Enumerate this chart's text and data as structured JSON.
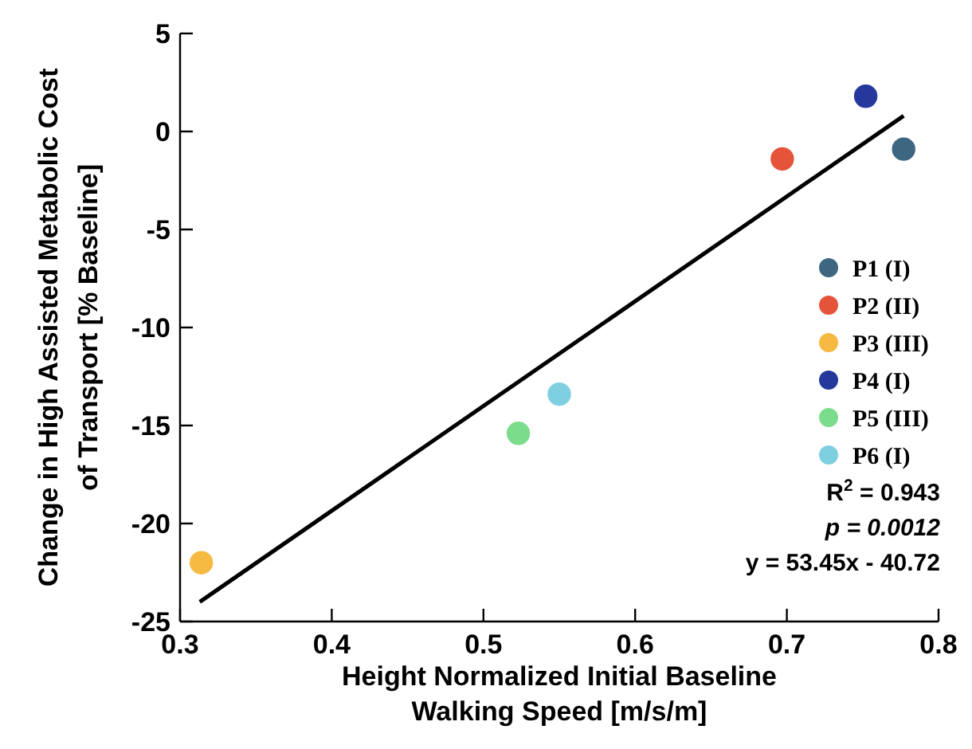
{
  "chart_data": {
    "type": "scatter",
    "xlabel": "Height Normalized Initial Baseline\nWalking Speed [m/s/m]",
    "ylabel": "Change in High Assisted Metabolic Cost\nof Transport [% Baseline]",
    "xlim": [
      0.3,
      0.8
    ],
    "xticks": [
      0.3,
      0.4,
      0.5,
      0.6,
      0.7,
      0.8
    ],
    "ylim": [
      -25,
      5
    ],
    "yticks": [
      -25,
      -20,
      -15,
      -10,
      -5,
      0,
      5
    ],
    "marker": "circle",
    "legend": "right",
    "grid": false,
    "annotations": [
      "R$^{2}$ = 0.943",
      "p = 0.0012",
      "y = 53.45x - 40.72"
    ],
    "series": [
      {
        "name": "P1 (I)",
        "color": "#3d6680",
        "x": [
          0.777
        ],
        "values": [
          -0.9
        ]
      },
      {
        "name": "P2 (II)",
        "color": "#e5533a",
        "x": [
          0.697
        ],
        "values": [
          -1.4
        ]
      },
      {
        "name": "P3 (III)",
        "color": "#f6b942",
        "x": [
          0.314
        ],
        "values": [
          -22.0
        ]
      },
      {
        "name": "P4 (I)",
        "color": "#24399b",
        "x": [
          0.752
        ],
        "values": [
          1.8
        ]
      },
      {
        "name": "P5 (III)",
        "color": "#7bdc8c",
        "x": [
          0.523
        ],
        "values": [
          -15.4
        ]
      },
      {
        "name": "P6 (I)",
        "color": "#7ecfe0",
        "x": [
          0.55
        ],
        "values": [
          -13.4
        ]
      },
      {
        "type": "line",
        "color": "#000000",
        "x": [
          0.313,
          0.777
        ],
        "values": [
          -24.0,
          0.8
        ],
        "line_style": "solid",
        "marker": "none"
      }
    ]
  }
}
